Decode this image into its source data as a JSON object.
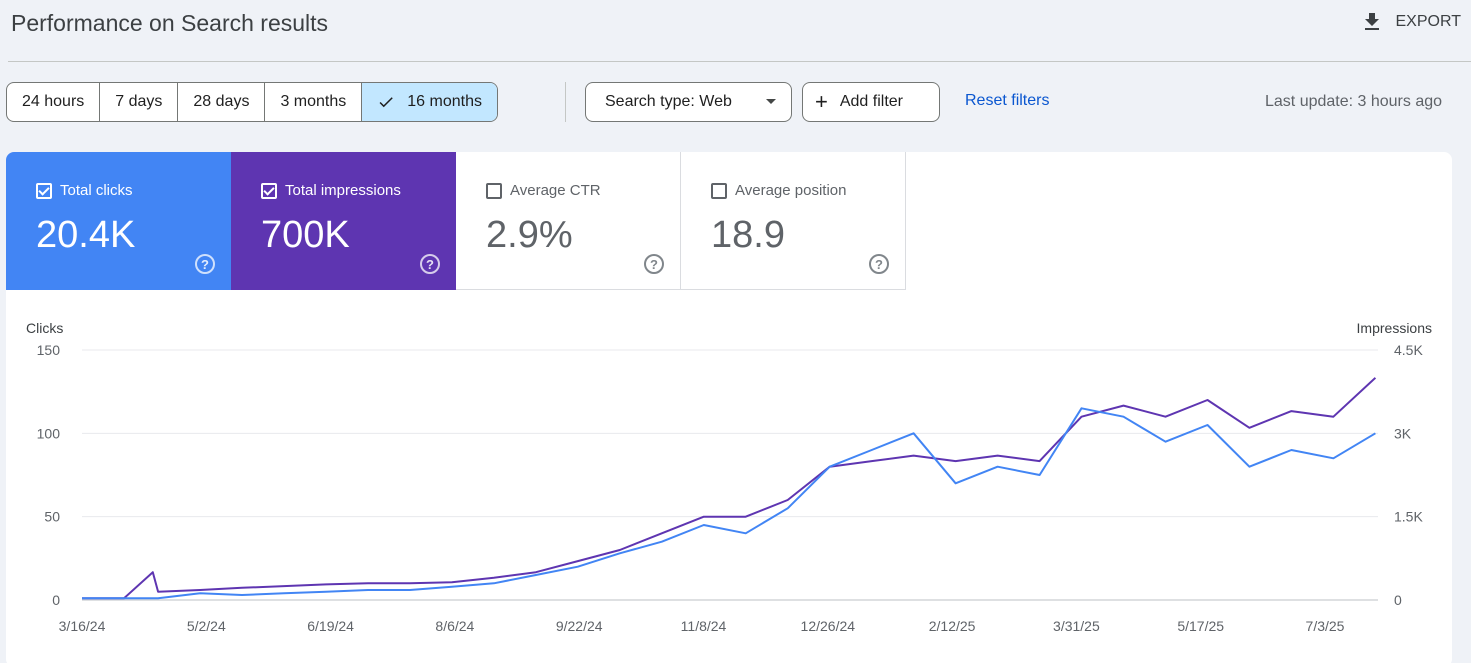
{
  "header": {
    "title": "Performance on Search results",
    "export_label": "EXPORT"
  },
  "toolbar": {
    "date_ranges": [
      "24 hours",
      "7 days",
      "28 days",
      "3 months",
      "16 months"
    ],
    "selected_range": "16 months",
    "search_type_label": "Search type: Web",
    "add_filter_label": "Add filter",
    "reset_filters_label": "Reset filters",
    "last_update": "Last update: 3 hours ago"
  },
  "metrics": {
    "clicks": {
      "label": "Total clicks",
      "value": "20.4K",
      "checked": true,
      "color": "#4285f4",
      "help": "?"
    },
    "impressions": {
      "label": "Total impressions",
      "value": "700K",
      "checked": true,
      "color": "#5e35b1",
      "help": "?"
    },
    "ctr": {
      "label": "Average CTR",
      "value": "2.9%",
      "checked": false,
      "help": "?"
    },
    "position": {
      "label": "Average position",
      "value": "18.9",
      "checked": false,
      "help": "?"
    }
  },
  "chart_data": {
    "type": "line",
    "ylabel_left": "Clicks",
    "ylabel_right": "Impressions",
    "y_left_range": [
      0,
      150
    ],
    "y_right_range": [
      0,
      4500
    ],
    "y_left_ticks": [
      "0",
      "50",
      "100",
      "150"
    ],
    "y_right_ticks": [
      "0",
      "1.5K",
      "3K",
      "4.5K"
    ],
    "x_tick_labels": [
      "3/16/24",
      "5/2/24",
      "6/19/24",
      "8/6/24",
      "9/22/24",
      "11/8/24",
      "12/26/24",
      "2/12/25",
      "3/31/25",
      "5/17/25",
      "7/3/25"
    ],
    "x_range": [
      "2024-03-16",
      "2025-07-23"
    ],
    "grid": true,
    "series": [
      {
        "name": "Clicks",
        "axis": "left",
        "color": "#4285f4",
        "x": [
          "2024-03-16",
          "2024-04-01",
          "2024-04-12",
          "2024-04-14",
          "2024-04-30",
          "2024-05-16",
          "2024-06-01",
          "2024-06-17",
          "2024-07-03",
          "2024-07-19",
          "2024-08-04",
          "2024-08-20",
          "2024-09-05",
          "2024-09-21",
          "2024-10-07",
          "2024-10-23",
          "2024-11-08",
          "2024-11-24",
          "2024-12-10",
          "2024-12-26",
          "2025-01-11",
          "2025-01-27",
          "2025-02-12",
          "2025-02-28",
          "2025-03-16",
          "2025-04-01",
          "2025-04-17",
          "2025-05-03",
          "2025-05-19",
          "2025-06-04",
          "2025-06-20",
          "2025-07-06",
          "2025-07-22"
        ],
        "values": [
          1,
          1,
          1,
          1,
          4,
          3,
          4,
          5,
          6,
          6,
          8,
          10,
          15,
          20,
          28,
          35,
          45,
          40,
          55,
          80,
          90,
          100,
          70,
          80,
          75,
          115,
          110,
          95,
          105,
          80,
          90,
          85,
          100
        ]
      },
      {
        "name": "Impressions",
        "axis": "right",
        "color": "#5e35b1",
        "x": [
          "2024-03-16",
          "2024-04-01",
          "2024-04-12",
          "2024-04-14",
          "2024-04-30",
          "2024-05-16",
          "2024-06-01",
          "2024-06-17",
          "2024-07-03",
          "2024-07-19",
          "2024-08-04",
          "2024-08-20",
          "2024-09-05",
          "2024-09-21",
          "2024-10-07",
          "2024-10-23",
          "2024-11-08",
          "2024-11-24",
          "2024-12-10",
          "2024-12-26",
          "2025-01-11",
          "2025-01-27",
          "2025-02-12",
          "2025-02-28",
          "2025-03-16",
          "2025-04-01",
          "2025-04-17",
          "2025-05-03",
          "2025-05-19",
          "2025-06-04",
          "2025-06-20",
          "2025-07-06",
          "2025-07-22"
        ],
        "values": [
          30,
          30,
          500,
          150,
          180,
          220,
          250,
          280,
          300,
          300,
          320,
          400,
          500,
          700,
          900,
          1200,
          1500,
          1500,
          1800,
          2400,
          2500,
          2600,
          2500,
          2600,
          2500,
          3300,
          3500,
          3300,
          3600,
          3100,
          3400,
          3300,
          4000
        ]
      }
    ]
  }
}
